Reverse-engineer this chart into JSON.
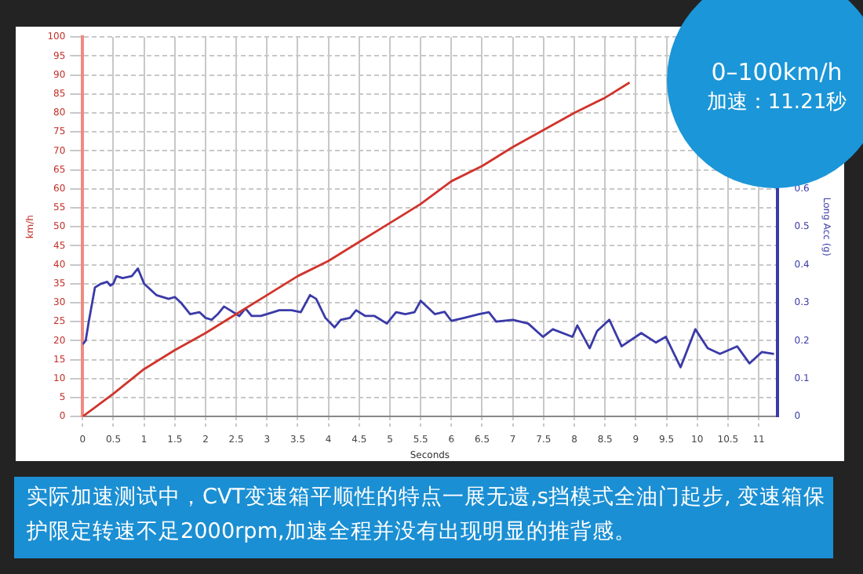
{
  "chart_data": {
    "type": "line",
    "xlabel": "Seconds",
    "ylabel": "km/h",
    "y2label": "Long Acc (g)",
    "annotations": [
      "0–100km/h",
      "加速：11.21秒",
      "实际加速测试中，CVT变速箱平顺性的特点一展无遗,s挡模式全油门起步, 变速箱保护限定转速不足2000rpm,加速全程并没有出现明显的推背感。"
    ],
    "xlim": [
      0,
      11.3
    ],
    "xticks": [
      0,
      0.5,
      1,
      1.5,
      2,
      2.5,
      3,
      3.5,
      4,
      4.5,
      5,
      5.5,
      6,
      6.5,
      7,
      7.5,
      8,
      8.5,
      9,
      9.5,
      10,
      10.5,
      11
    ],
    "ylim": [
      0,
      100
    ],
    "yticks": [
      0,
      5,
      10,
      15,
      20,
      25,
      30,
      35,
      40,
      45,
      50,
      55,
      60,
      65,
      70,
      75,
      80,
      85,
      90,
      95,
      100
    ],
    "y2lim": [
      0,
      1
    ],
    "y2ticks": [
      0,
      0.1,
      0.2,
      0.3,
      0.4,
      0.5,
      0.6
    ],
    "grid": true,
    "legend": false,
    "marker": "none",
    "line_style": "solid",
    "series": [
      {
        "color": "#d0342c",
        "x": [
          0,
          0.5,
          1,
          1.5,
          2,
          2.5,
          3,
          3.5,
          4,
          4.5,
          5,
          5.5,
          6,
          6.5,
          7,
          7.5,
          8,
          8.5,
          8.9
        ],
        "values": [
          0,
          6,
          12.5,
          17.5,
          22,
          27,
          32,
          37,
          41,
          46,
          51,
          56,
          62,
          66,
          71,
          75.5,
          80,
          84,
          88
        ]
      },
      {
        "color": "#3a3aa8",
        "axis": "y2",
        "x": [
          0,
          0.05,
          0.1,
          0.2,
          0.3,
          0.4,
          0.45,
          0.5,
          0.55,
          0.65,
          0.8,
          0.9,
          1,
          1.1,
          1.2,
          1.4,
          1.5,
          1.6,
          1.75,
          1.9,
          2,
          2.1,
          2.2,
          2.3,
          2.4,
          2.5,
          2.55,
          2.65,
          2.75,
          2.9,
          3.1,
          3.2,
          3.4,
          3.55,
          3.7,
          3.8,
          3.95,
          4.1,
          4.2,
          4.35,
          4.45,
          4.6,
          4.75,
          4.85,
          4.95,
          5.1,
          5.25,
          5.4,
          5.5,
          5.73,
          5.89,
          6,
          6.21,
          6.45,
          6.61,
          6.73,
          7,
          7.25,
          7.49,
          7.65,
          7.97,
          8.05,
          8.25,
          8.37,
          8.57,
          8.77,
          9.09,
          9.33,
          9.49,
          9.73,
          9.97,
          10.17,
          10.37,
          10.65,
          10.85,
          11.05,
          11.25
        ],
        "values": [
          0.19,
          0.2,
          0.25,
          0.34,
          0.35,
          0.355,
          0.345,
          0.35,
          0.37,
          0.365,
          0.37,
          0.39,
          0.35,
          0.335,
          0.32,
          0.31,
          0.315,
          0.3,
          0.27,
          0.275,
          0.26,
          0.255,
          0.27,
          0.29,
          0.28,
          0.27,
          0.265,
          0.285,
          0.265,
          0.265,
          0.275,
          0.28,
          0.28,
          0.275,
          0.32,
          0.31,
          0.26,
          0.235,
          0.255,
          0.26,
          0.28,
          0.265,
          0.265,
          0.255,
          0.245,
          0.275,
          0.27,
          0.275,
          0.305,
          0.27,
          0.276,
          0.252,
          0.26,
          0.27,
          0.275,
          0.25,
          0.255,
          0.245,
          0.21,
          0.23,
          0.21,
          0.24,
          0.18,
          0.225,
          0.255,
          0.185,
          0.22,
          0.195,
          0.21,
          0.13,
          0.23,
          0.18,
          0.165,
          0.185,
          0.14,
          0.17,
          0.165
        ]
      }
    ]
  }
}
